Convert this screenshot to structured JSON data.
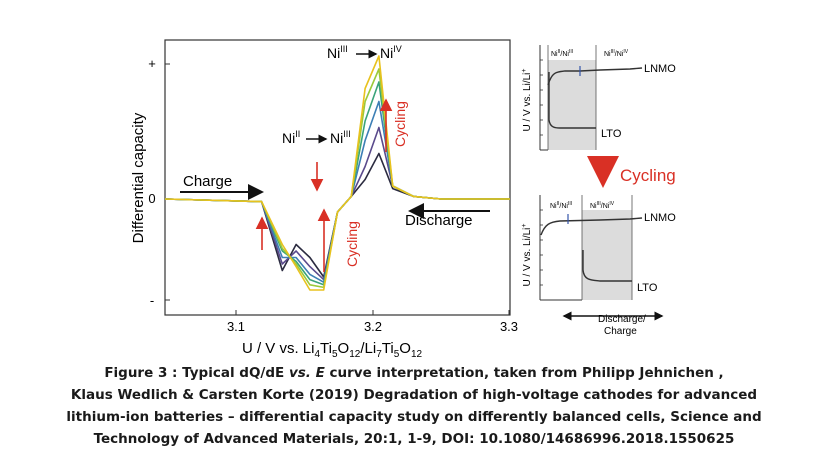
{
  "main_plot": {
    "ylabel": "Differential capacity",
    "xlabel_main": "U / V vs. Li",
    "xlabel_sub1": "4",
    "xlabel_mid1": "Ti",
    "xlabel_sub2": "5",
    "xlabel_mid2": "O",
    "xlabel_sub3": "12",
    "xlabel_mid3": "/Li",
    "xlabel_sub4": "7",
    "xlabel_mid4": "Ti",
    "xlabel_sub5": "5",
    "xlabel_mid5": "O",
    "xlabel_sub6": "12",
    "y_ticks": [
      "+",
      "0",
      "-"
    ],
    "x_ticks": [
      "3.1",
      "3.2",
      "3.3"
    ],
    "label_charge": "Charge",
    "label_discharge": "Discharge",
    "label_cycling_top": "Cycling",
    "label_cycling_bottom": "Cycling",
    "label_ni2_a": "Ni",
    "label_ni2_sup": "II",
    "label_ni3_a": "Ni",
    "label_ni3_sup": "III",
    "label_ni3b_a": "Ni",
    "label_ni3b_sup": "III",
    "label_ni4_a": "Ni",
    "label_ni4_sup": "IV",
    "colors": {
      "cycle_1": "#2b2b40",
      "cycle_2": "#5a4a8c",
      "cycle_3": "#3d7fb5",
      "cycle_4": "#3aa37a",
      "cycle_5": "#9cc93a",
      "cycle_6": "#e8c21e",
      "arrow_red": "#d93025"
    }
  },
  "chart_data": {
    "type": "line",
    "title": "",
    "xlabel": "U / V vs. Li4Ti5O12/Li7Ti5O12",
    "ylabel": "Differential capacity",
    "xlim": [
      3.05,
      3.3
    ],
    "series": [
      {
        "x": [
          3.05,
          3.12,
          3.135,
          3.145,
          3.155,
          3.165,
          3.175,
          3.185,
          3.195,
          3.205,
          3.215,
          3.23,
          3.25,
          3.3
        ],
        "y": [
          0,
          -0.02,
          -0.55,
          -0.35,
          -0.45,
          -0.6,
          -0.1,
          0.02,
          0.15,
          0.35,
          0.08,
          0.02,
          0,
          0
        ]
      },
      {
        "x": [
          3.05,
          3.12,
          3.135,
          3.145,
          3.155,
          3.165,
          3.175,
          3.185,
          3.195,
          3.205,
          3.215,
          3.23,
          3.25,
          3.3
        ],
        "y": [
          0,
          -0.02,
          -0.5,
          -0.4,
          -0.52,
          -0.62,
          -0.1,
          0.02,
          0.25,
          0.55,
          0.1,
          0.02,
          0,
          0
        ]
      },
      {
        "x": [
          3.05,
          3.12,
          3.135,
          3.145,
          3.155,
          3.165,
          3.175,
          3.185,
          3.195,
          3.205,
          3.215,
          3.23,
          3.25,
          3.3
        ],
        "y": [
          0,
          -0.02,
          -0.45,
          -0.45,
          -0.58,
          -0.64,
          -0.1,
          0.02,
          0.45,
          0.75,
          0.1,
          0.02,
          0,
          0
        ]
      },
      {
        "x": [
          3.05,
          3.12,
          3.135,
          3.145,
          3.155,
          3.165,
          3.175,
          3.185,
          3.195,
          3.205,
          3.215,
          3.23,
          3.25,
          3.3
        ],
        "y": [
          0,
          -0.02,
          -0.4,
          -0.48,
          -0.62,
          -0.66,
          -0.1,
          0.02,
          0.6,
          0.9,
          0.1,
          0.02,
          0,
          0
        ]
      },
      {
        "x": [
          3.05,
          3.12,
          3.135,
          3.145,
          3.155,
          3.165,
          3.175,
          3.185,
          3.195,
          3.205,
          3.215,
          3.23,
          3.25,
          3.3
        ],
        "y": [
          0,
          -0.02,
          -0.38,
          -0.5,
          -0.66,
          -0.68,
          -0.1,
          0.02,
          0.75,
          1.0,
          0.1,
          0.02,
          0,
          0
        ]
      },
      {
        "x": [
          3.05,
          3.12,
          3.135,
          3.145,
          3.155,
          3.165,
          3.175,
          3.185,
          3.195,
          3.205,
          3.215,
          3.23,
          3.25,
          3.3
        ],
        "y": [
          0,
          -0.02,
          -0.35,
          -0.52,
          -0.7,
          -0.7,
          -0.1,
          0.02,
          0.85,
          1.1,
          0.1,
          0.02,
          0,
          0
        ]
      }
    ]
  },
  "side_top": {
    "ylabel": "U / V vs. Li/Li",
    "ylabel_sup": "+",
    "label_region_a": "Ni",
    "label_region_a_sup1": "II",
    "label_region_a_mid": "/Ni",
    "label_region_a_sup2": "III",
    "label_region_b": "Ni",
    "label_region_b_sup1": "III",
    "label_region_b_mid": "/Ni",
    "label_region_b_sup2": "IV",
    "label_lnmo": "LNMO",
    "label_lto": "LTO"
  },
  "side_bottom": {
    "ylabel": "U / V vs. Li/Li",
    "ylabel_sup": "+",
    "label_region_a": "Ni",
    "label_region_a_sup1": "II",
    "label_region_a_mid": "/Ni",
    "label_region_a_sup2": "III",
    "label_region_b": "Ni",
    "label_region_b_sup1": "III",
    "label_region_b_mid": "/Ni",
    "label_region_b_sup2": "IV",
    "label_lnmo": "LNMO",
    "label_lto": "LTO",
    "label_discharge_charge_1": "Discharge/",
    "label_discharge_charge_2": "Charge"
  },
  "cycling_arrow_label": "Cycling",
  "caption": {
    "line1_a": "Figure 3 : Typical dQ/dE ",
    "line1_em": "vs. E",
    "line1_b": " curve interpretation, taken from Philipp Jehnichen ,",
    "line2": "Klaus Wedlich & Carsten Korte (2019) Degradation of high-voltage cathodes for advanced",
    "line3": "lithium-ion batteries – differential capacity study on differently balanced cells, Science and",
    "line4": "Technology of Advanced Materials, 20:1, 1-9, DOI: 10.1080/14686996.2018.1550625"
  }
}
